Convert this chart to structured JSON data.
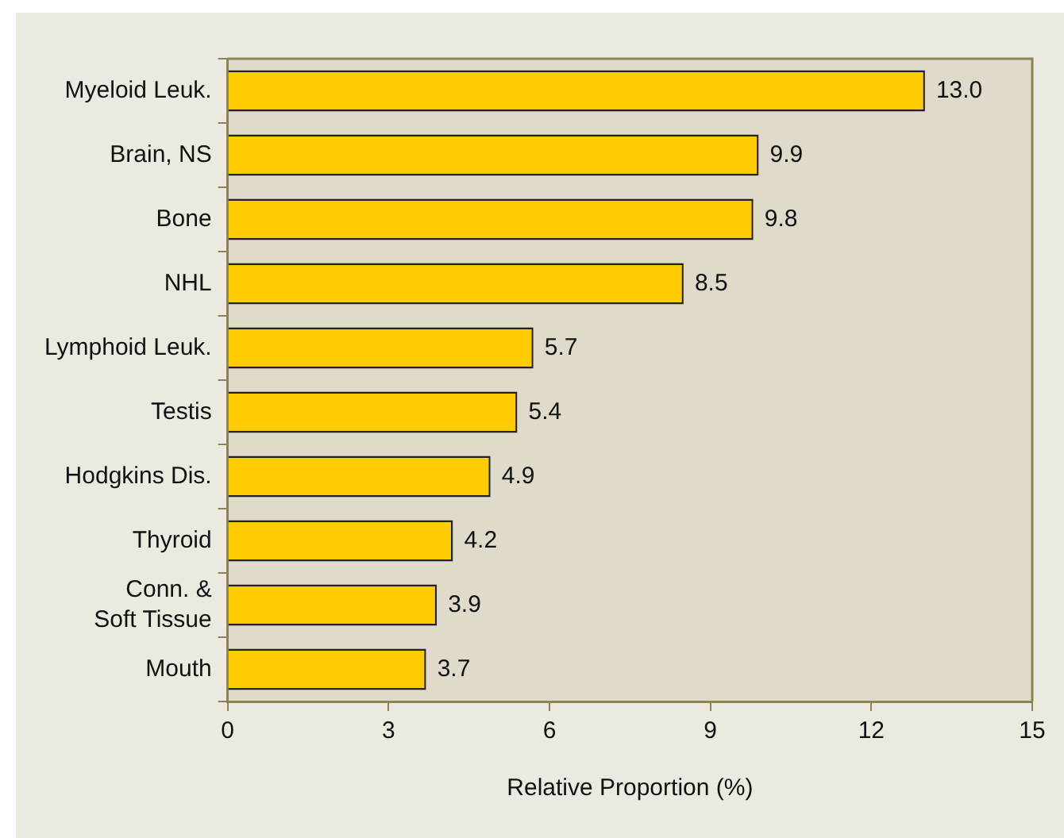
{
  "chart_data": {
    "type": "bar",
    "orientation": "horizontal",
    "xlabel": "Relative Proportion (%)",
    "categories": [
      "Myeloid Leuk.",
      "Brain, NS",
      "Bone",
      "NHL",
      "Lymphoid Leuk.",
      "Testis",
      "Hodgkins Dis.",
      "Thyroid",
      "Conn. &\nSoft Tissue",
      "Mouth"
    ],
    "values": [
      13.0,
      9.9,
      9.8,
      8.5,
      5.7,
      5.4,
      4.9,
      4.2,
      3.9,
      3.7
    ],
    "value_labels": [
      "13.0",
      "9.9",
      "9.8",
      "8.5",
      "5.7",
      "5.4",
      "4.9",
      "4.2",
      "3.9",
      "3.7"
    ],
    "color": "#ffcc00",
    "xlim": [
      0,
      15
    ],
    "xticks": [
      0,
      3,
      6,
      9,
      12,
      15
    ],
    "grid": false,
    "legend": false
  }
}
